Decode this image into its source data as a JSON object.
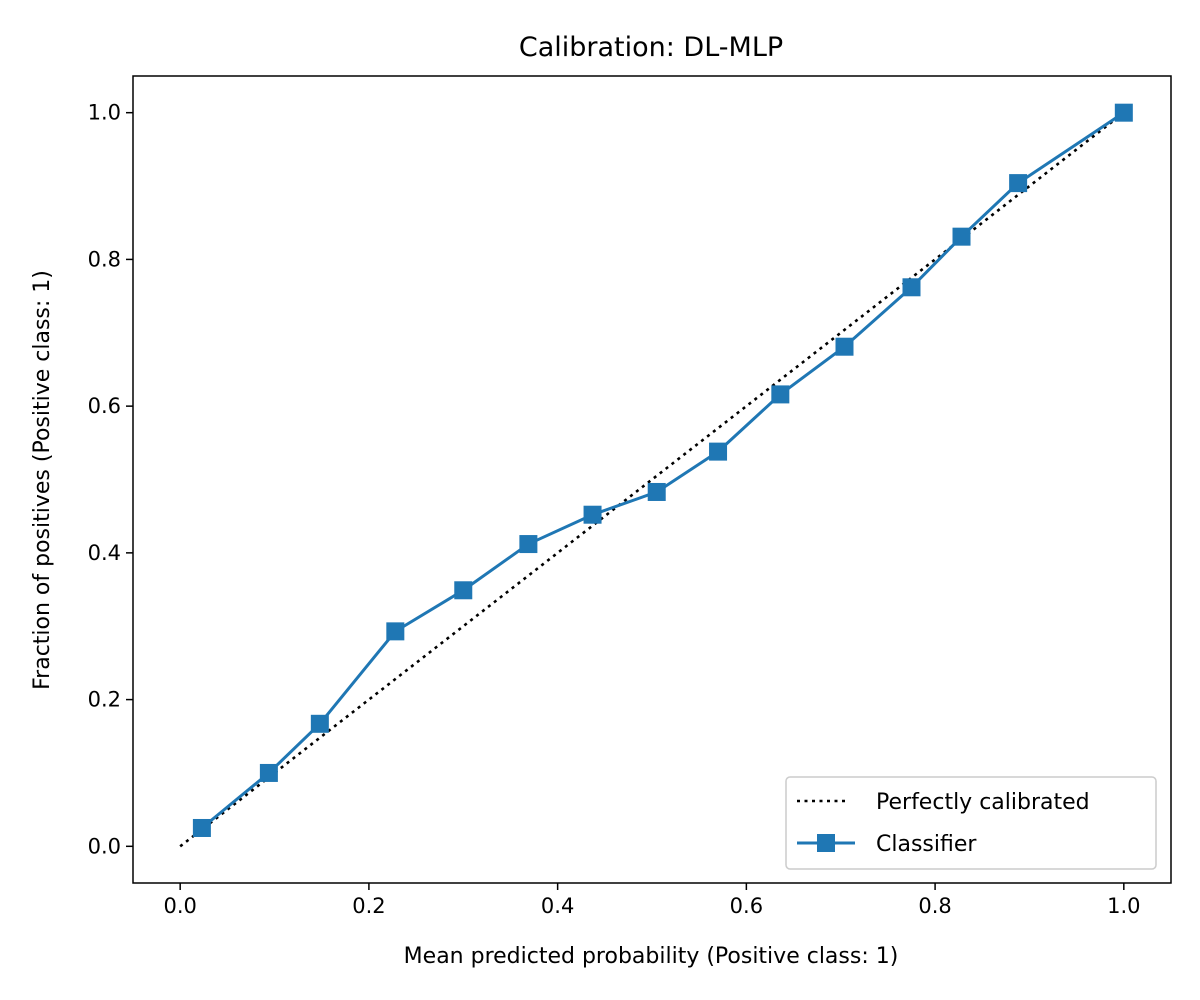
{
  "chart_data": {
    "type": "line",
    "title": "Calibration: DL-MLP",
    "xlabel": "Mean predicted probability (Positive class: 1)",
    "ylabel": "Fraction of positives (Positive class: 1)",
    "xlim": [
      -0.05,
      1.05
    ],
    "ylim": [
      -0.05,
      1.05
    ],
    "xticks": [
      "0.0",
      "0.2",
      "0.4",
      "0.6",
      "0.8",
      "1.0"
    ],
    "yticks": [
      "0.0",
      "0.2",
      "0.4",
      "0.6",
      "0.8",
      "1.0"
    ],
    "grid": false,
    "legend_position": "lower-right",
    "series": [
      {
        "name": "Perfectly calibrated",
        "style": "dotted",
        "marker": "none",
        "color": "#000000",
        "x": [
          0.0,
          1.0
        ],
        "y": [
          0.0,
          1.0
        ]
      },
      {
        "name": "Classifier",
        "style": "solid",
        "marker": "square",
        "color": "#1f77b4",
        "x": [
          0.023,
          0.094,
          0.148,
          0.228,
          0.3,
          0.369,
          0.437,
          0.505,
          0.57,
          0.636,
          0.704,
          0.775,
          0.828,
          0.888,
          1.0
        ],
        "y": [
          0.025,
          0.1,
          0.167,
          0.293,
          0.349,
          0.412,
          0.452,
          0.483,
          0.538,
          0.616,
          0.681,
          0.762,
          0.831,
          0.904,
          1.0
        ]
      }
    ]
  }
}
